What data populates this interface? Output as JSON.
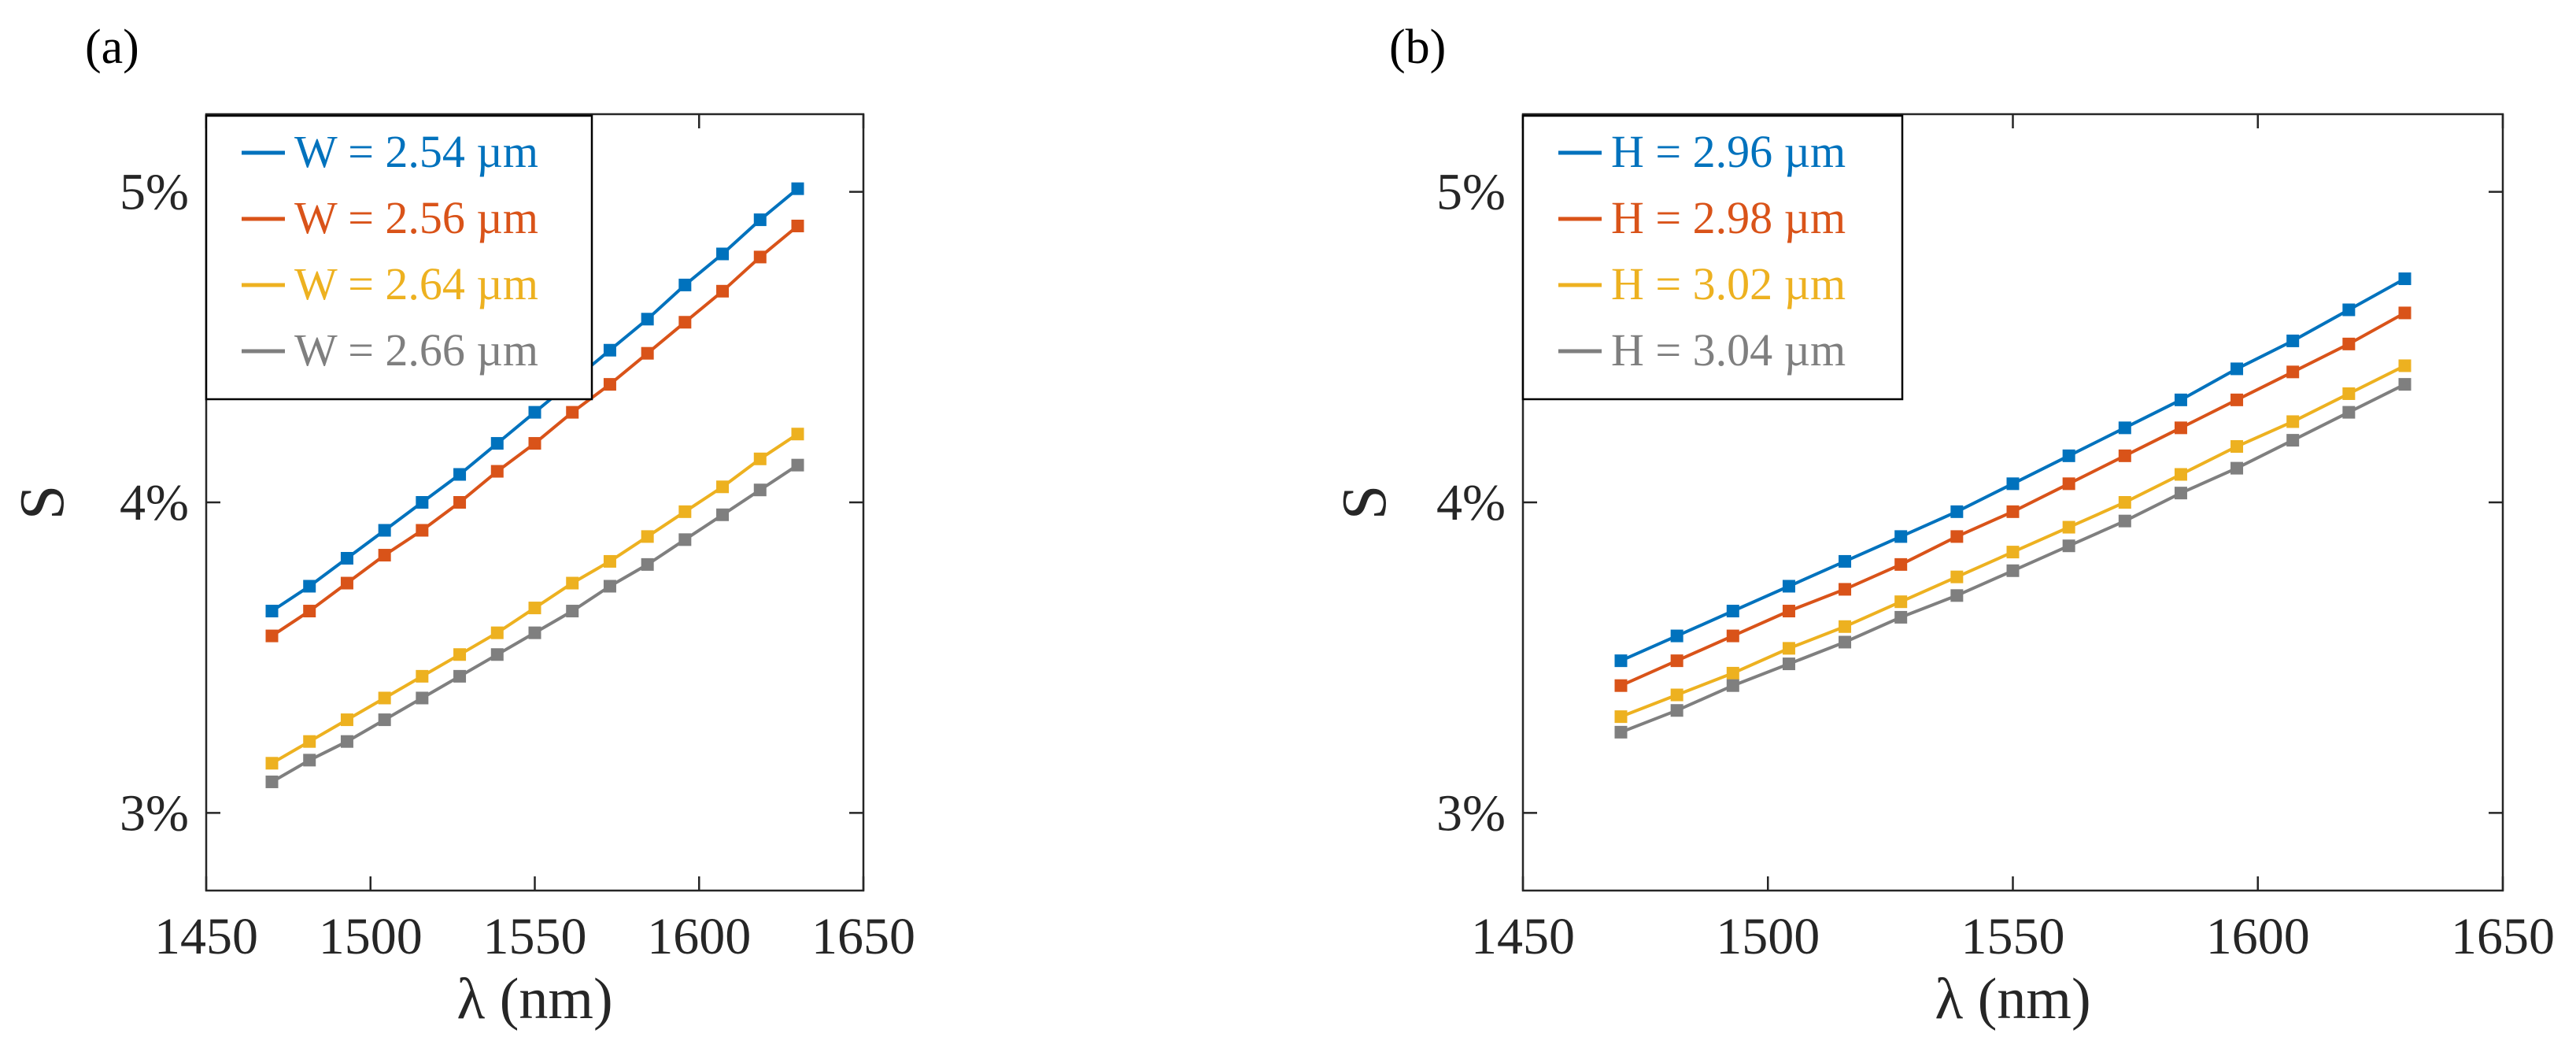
{
  "chart_data": [
    {
      "type": "line",
      "panel_label": "(a)",
      "xlabel": "λ (nm)",
      "ylabel": "S",
      "xlim": [
        1450,
        1650
      ],
      "ylim": [
        0.0275,
        0.0525
      ],
      "xticks": [
        1450,
        1500,
        1550,
        1600,
        1650
      ],
      "xtick_labels": [
        "1450",
        "1500",
        "1550",
        "1600",
        "1650"
      ],
      "yticks": [
        0.03,
        0.04,
        0.05
      ],
      "ytick_labels": [
        "3%",
        "4%",
        "5%"
      ],
      "x": [
        1470,
        1481.43,
        1492.86,
        1504.29,
        1515.71,
        1527.14,
        1538.57,
        1550,
        1561.43,
        1572.86,
        1584.29,
        1595.71,
        1607.14,
        1618.57,
        1630
      ],
      "legend_location": "top-left",
      "series": [
        {
          "name": "W = 2.54 µm",
          "color": "#0072BD",
          "values": [
            0.0365,
            0.0373,
            0.0382,
            0.0391,
            0.04,
            0.0409,
            0.0419,
            0.0429,
            0.0439,
            0.0449,
            0.0459,
            0.047,
            0.048,
            0.0491,
            0.0501
          ]
        },
        {
          "name": "W = 2.56 µm",
          "color": "#D95319",
          "values": [
            0.0357,
            0.0365,
            0.0374,
            0.0383,
            0.0391,
            0.04,
            0.041,
            0.0419,
            0.0429,
            0.0438,
            0.0448,
            0.0458,
            0.0468,
            0.0479,
            0.0489
          ]
        },
        {
          "name": "W = 2.64 µm",
          "color": "#EDB120",
          "values": [
            0.0316,
            0.0323,
            0.033,
            0.0337,
            0.0344,
            0.0351,
            0.0358,
            0.0366,
            0.0374,
            0.0381,
            0.0389,
            0.0397,
            0.0405,
            0.0414,
            0.0422
          ]
        },
        {
          "name": "W = 2.66 µm",
          "color": "#7F7F7F",
          "values": [
            0.031,
            0.0317,
            0.0323,
            0.033,
            0.0337,
            0.0344,
            0.0351,
            0.0358,
            0.0365,
            0.0373,
            0.038,
            0.0388,
            0.0396,
            0.0404,
            0.0412
          ]
        }
      ]
    },
    {
      "type": "line",
      "panel_label": "(b)",
      "xlabel": "λ (nm)",
      "ylabel": "S",
      "xlim": [
        1450,
        1650
      ],
      "ylim": [
        0.0275,
        0.0525
      ],
      "xticks": [
        1450,
        1500,
        1550,
        1600,
        1650
      ],
      "xtick_labels": [
        "1450",
        "1500",
        "1550",
        "1600",
        "1650"
      ],
      "yticks": [
        0.03,
        0.04,
        0.05
      ],
      "ytick_labels": [
        "3%",
        "4%",
        "5%"
      ],
      "x": [
        1470,
        1481.43,
        1492.86,
        1504.29,
        1515.71,
        1527.14,
        1538.57,
        1550,
        1561.43,
        1572.86,
        1584.29,
        1595.71,
        1607.14,
        1618.57,
        1630
      ],
      "legend_location": "top-left",
      "series": [
        {
          "name": "H = 2.96 µm",
          "color": "#0072BD",
          "values": [
            0.0349,
            0.0357,
            0.0365,
            0.0373,
            0.0381,
            0.0389,
            0.0397,
            0.0406,
            0.0415,
            0.0424,
            0.0433,
            0.0443,
            0.0452,
            0.0462,
            0.0472
          ]
        },
        {
          "name": "H = 2.98 µm",
          "color": "#D95319",
          "values": [
            0.0341,
            0.0349,
            0.0357,
            0.0365,
            0.0372,
            0.038,
            0.0389,
            0.0397,
            0.0406,
            0.0415,
            0.0424,
            0.0433,
            0.0442,
            0.0451,
            0.0461
          ]
        },
        {
          "name": "H = 3.02 µm",
          "color": "#EDB120",
          "values": [
            0.0331,
            0.0338,
            0.0345,
            0.0353,
            0.036,
            0.0368,
            0.0376,
            0.0384,
            0.0392,
            0.04,
            0.0409,
            0.0418,
            0.0426,
            0.0435,
            0.0444
          ]
        },
        {
          "name": "H = 3.04 µm",
          "color": "#7F7F7F",
          "values": [
            0.0326,
            0.0333,
            0.0341,
            0.0348,
            0.0355,
            0.0363,
            0.037,
            0.0378,
            0.0386,
            0.0394,
            0.0403,
            0.0411,
            0.042,
            0.0429,
            0.0438
          ]
        }
      ]
    }
  ]
}
